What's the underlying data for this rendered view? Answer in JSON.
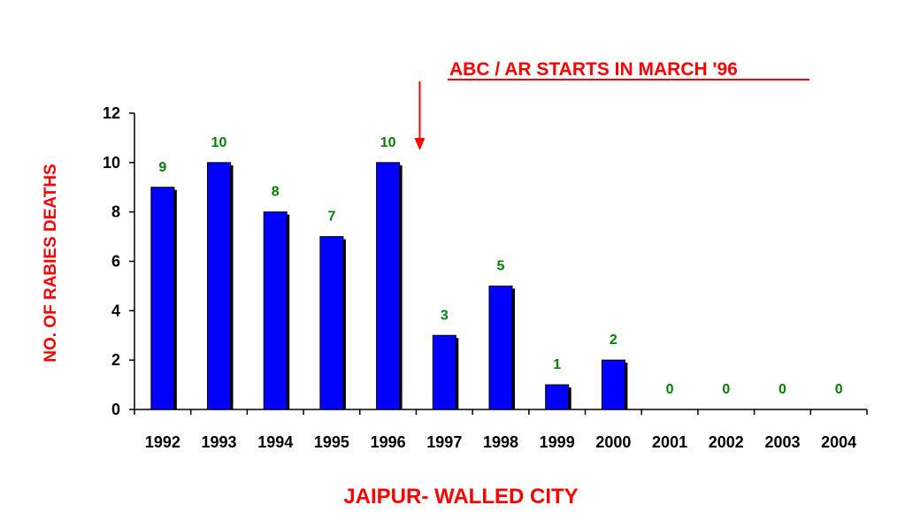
{
  "chart_data": {
    "type": "bar",
    "categories": [
      "1992",
      "1993",
      "1994",
      "1995",
      "1996",
      "1997",
      "1998",
      "1999",
      "2000",
      "2001",
      "2002",
      "2003",
      "2004"
    ],
    "values": [
      9,
      10,
      8,
      7,
      10,
      3,
      5,
      1,
      2,
      0,
      0,
      0,
      0
    ],
    "data_labels": [
      "9",
      "10",
      "8",
      "7",
      "10",
      "3",
      "5",
      "1",
      "2",
      "0",
      "0",
      "0",
      "0"
    ],
    "xlabel": "JAIPUR- WALLED CITY",
    "ylabel": "NO. OF RABIES DEATHS",
    "ylim": [
      0,
      12
    ],
    "yticks": [
      "0",
      "2",
      "4",
      "6",
      "8",
      "10",
      "12"
    ],
    "grid": false,
    "legend": "none",
    "annotation": {
      "text": "ABC / AR STARTS IN MARCH '96",
      "points_to": "between 1996 and 1997",
      "underline": true
    },
    "colors": {
      "bar": "#0000ff",
      "bar_shadow": "#000000",
      "data_label": "#008000",
      "title_text": "#ff0000",
      "arrow": "#ff0000",
      "axis": "#000000"
    }
  }
}
